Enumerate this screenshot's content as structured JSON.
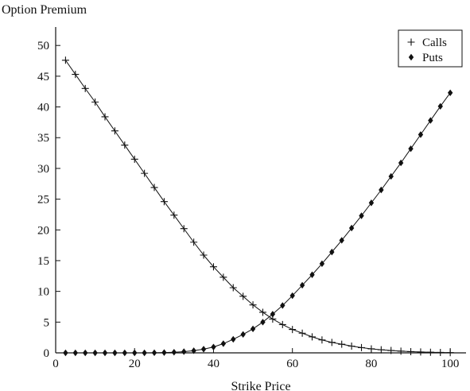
{
  "chart_data": {
    "type": "line",
    "title": "",
    "xlabel": "Strike Price",
    "ylabel": "Option Premium",
    "xlim": [
      0,
      104
    ],
    "ylim": [
      0,
      53
    ],
    "xticks": [
      0,
      20,
      40,
      60,
      80,
      100
    ],
    "yticks": [
      0,
      5,
      10,
      15,
      20,
      25,
      30,
      35,
      40,
      45,
      50
    ],
    "grid": false,
    "legend_position": "top-right",
    "colors": {
      "line": "#111111"
    },
    "x": [
      2.5,
      5,
      7.5,
      10,
      12.5,
      15,
      17.5,
      20,
      22.5,
      25,
      27.5,
      30,
      32.5,
      35,
      37.5,
      40,
      42.5,
      45,
      47.5,
      50,
      52.5,
      55,
      57.5,
      60,
      62.5,
      65,
      67.5,
      70,
      72.5,
      75,
      77.5,
      80,
      82.5,
      85,
      87.5,
      90,
      92.5,
      95,
      97.5,
      100
    ],
    "series": [
      {
        "name": "Calls",
        "marker": "plus",
        "values": [
          47.6,
          45.3,
          43.0,
          40.8,
          38.4,
          36.1,
          33.8,
          31.5,
          29.2,
          26.9,
          24.6,
          22.4,
          20.2,
          18.0,
          15.9,
          14.0,
          12.3,
          10.6,
          9.2,
          7.8,
          6.6,
          5.5,
          4.6,
          3.8,
          3.2,
          2.6,
          2.1,
          1.7,
          1.4,
          1.1,
          0.85,
          0.65,
          0.5,
          0.38,
          0.28,
          0.2,
          0.14,
          0.1,
          0.07,
          0.04
        ]
      },
      {
        "name": "Puts",
        "marker": "diamond",
        "values": [
          0,
          0,
          0,
          0,
          0,
          0,
          0,
          0,
          0,
          0.02,
          0.05,
          0.1,
          0.2,
          0.35,
          0.6,
          0.95,
          1.5,
          2.2,
          3.0,
          3.9,
          5.0,
          6.3,
          7.7,
          9.3,
          11.0,
          12.7,
          14.5,
          16.4,
          18.3,
          20.3,
          22.3,
          24.4,
          26.5,
          28.7,
          30.9,
          33.2,
          35.5,
          37.8,
          40.1,
          42.3
        ]
      }
    ]
  }
}
